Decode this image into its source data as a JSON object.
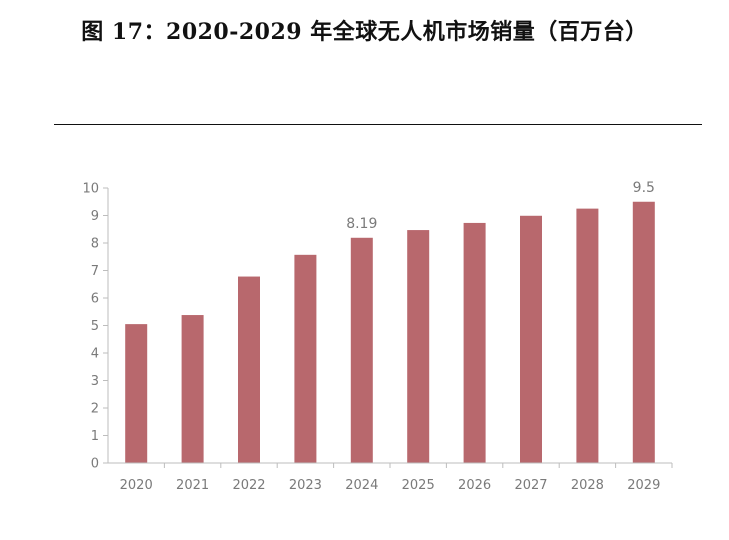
{
  "figure": {
    "title": "图 17：2020-2029 年全球无人机市场销量（百万台）"
  },
  "colors": {
    "bar": "#b8686d",
    "axis": "#bdbdbd",
    "tick_text": "#7a7a7a"
  },
  "chart_data": {
    "type": "bar",
    "title": "",
    "xlabel": "",
    "ylabel": "",
    "categories": [
      "2020",
      "2021",
      "2022",
      "2023",
      "2024",
      "2025",
      "2026",
      "2027",
      "2028",
      "2029"
    ],
    "values": [
      5.05,
      5.38,
      6.78,
      7.57,
      8.19,
      8.47,
      8.73,
      8.99,
      9.25,
      9.5
    ],
    "data_labels": [
      {
        "category": "2024",
        "text": "8.19"
      },
      {
        "category": "2029",
        "text": "9.5"
      }
    ],
    "yticks": [
      "0",
      "1",
      "2",
      "3",
      "4",
      "5",
      "6",
      "7",
      "8",
      "9",
      "10"
    ],
    "ylim": [
      0,
      10
    ],
    "grid": false,
    "legend": "none"
  }
}
